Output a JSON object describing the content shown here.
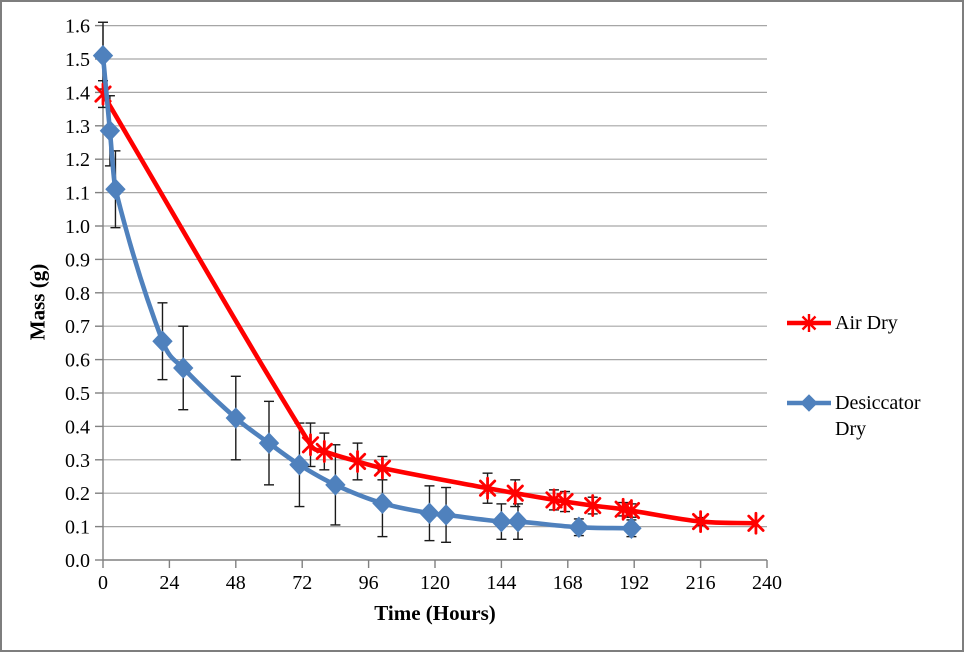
{
  "frame": {
    "background": "#FFFFFF",
    "border_color": "#7E7E7E"
  },
  "chart_data": {
    "type": "line",
    "title": "",
    "xlabel": "Time (Hours)",
    "ylabel": "Mass (g)",
    "xlim": [
      0,
      240
    ],
    "ylim": [
      0.0,
      1.6
    ],
    "x_ticks": [
      0,
      24,
      48,
      72,
      96,
      120,
      144,
      168,
      192,
      216,
      240
    ],
    "y_tick_labels": [
      "0.0",
      "0.1",
      "0.2",
      "0.3",
      "0.4",
      "0.5",
      "0.6",
      "0.7",
      "0.8",
      "0.9",
      "1.0",
      "1.1",
      "1.2",
      "1.3",
      "1.4",
      "1.5",
      "1.6"
    ],
    "grid": "horizontal",
    "legend_position": "right-middle",
    "error_bars": true,
    "error_bar_color": "#1a1a1a",
    "gridline_color": "#a6a6a6",
    "axis_color": "#808080",
    "series": [
      {
        "name": "Air Dry",
        "color": "#FF0000",
        "marker": "asterisk",
        "x": [
          0,
          75,
          80,
          92,
          101,
          139,
          149,
          163,
          167,
          177,
          188,
          191,
          216,
          236
        ],
        "y": [
          1.395,
          0.345,
          0.325,
          0.295,
          0.275,
          0.215,
          0.2,
          0.18,
          0.175,
          0.163,
          0.152,
          0.148,
          0.115,
          0.11
        ],
        "yerr": [
          0.04,
          0.065,
          0.055,
          0.055,
          0.035,
          0.045,
          0.04,
          0.03,
          0.03,
          0.025,
          0.02,
          0.02,
          0.012,
          0
        ]
      },
      {
        "name": "Desiccator Dry",
        "color": "#4F81BD",
        "marker": "diamond",
        "x": [
          0,
          2.5,
          4.5,
          21.5,
          29,
          48,
          60,
          71,
          84,
          101,
          118,
          124,
          144,
          150,
          172,
          191
        ],
        "y": [
          1.51,
          1.285,
          1.11,
          0.655,
          0.575,
          0.425,
          0.35,
          0.285,
          0.225,
          0.17,
          0.14,
          0.135,
          0.115,
          0.115,
          0.098,
          0.095
        ],
        "yerr": [
          0.1,
          0.105,
          0.115,
          0.115,
          0.125,
          0.125,
          0.125,
          0.125,
          0.12,
          0.1,
          0.082,
          0.082,
          0.053,
          0.053,
          0.025,
          0.025
        ]
      }
    ]
  }
}
